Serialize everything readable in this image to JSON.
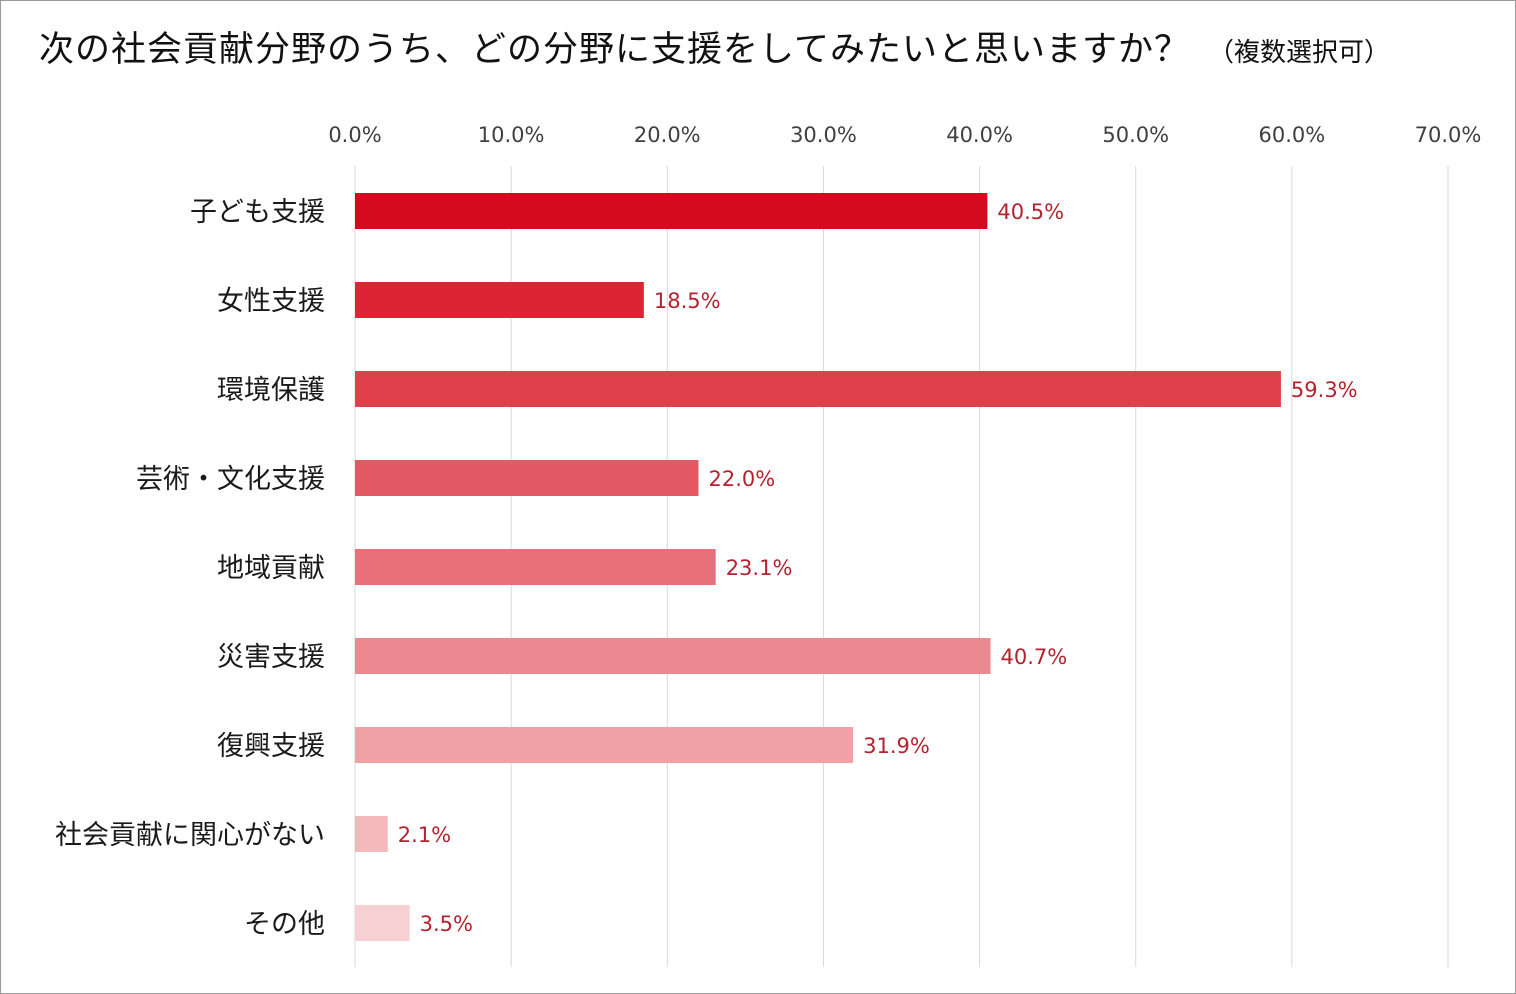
{
  "title": "次の社会貢献分野のうち、どの分野に支援をしてみたいと思いますか？",
  "subtitle": "（複数選択可）",
  "chart_data": {
    "type": "bar",
    "orientation": "horizontal",
    "categories": [
      "子ども支援",
      "女性支援",
      "環境保護",
      "芸術・文化支援",
      "地域貢献",
      "災害支援",
      "復興支援",
      "社会貢献に関心がない",
      "その他"
    ],
    "values": [
      40.5,
      18.5,
      59.3,
      22.0,
      23.1,
      40.7,
      31.9,
      2.1,
      3.5
    ],
    "value_labels": [
      "40.5%",
      "18.5%",
      "59.3%",
      "22.0%",
      "23.1%",
      "40.7%",
      "31.9%",
      "2.1%",
      "3.5%"
    ],
    "bar_colors": [
      "#d40a1e",
      "#dc2435",
      "#e0404c",
      "#e45a64",
      "#e8707a",
      "#ec8990",
      "#f0a1a6",
      "#f3b9bd",
      "#f6d0d3"
    ],
    "xlim": [
      0,
      70
    ],
    "x_ticks": [
      "0.0%",
      "10.0%",
      "20.0%",
      "30.0%",
      "40.0%",
      "50.0%",
      "60.0%",
      "70.0%"
    ],
    "x_axis_position": "top",
    "grid": true,
    "legend": "none",
    "label_color": "#b5222f"
  }
}
